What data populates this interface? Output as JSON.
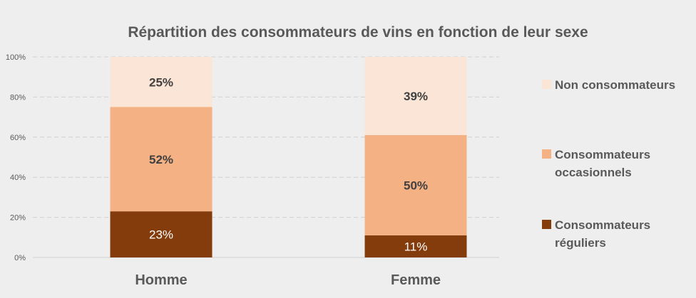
{
  "chart_data": {
    "type": "bar",
    "stacked": true,
    "percent_stacked": true,
    "title": "Répartition des consommateurs de vins en fonction de leur sexe",
    "categories": [
      "Homme",
      "Femme"
    ],
    "series": [
      {
        "name": "Consommateurs réguliers",
        "values": [
          23,
          11
        ],
        "labels": [
          "23%",
          "11%"
        ],
        "color": "#843c0c",
        "label_color": "#ffffff",
        "label_bold": false
      },
      {
        "name": "Consommateurs occasionnels",
        "values": [
          52,
          50
        ],
        "labels": [
          "52%",
          "50%"
        ],
        "color": "#f4b183",
        "label_color": "#404040",
        "label_bold": true
      },
      {
        "name": "Non consommateurs",
        "values": [
          25,
          39
        ],
        "labels": [
          "25%",
          "39%"
        ],
        "color": "#fbe5d6",
        "label_color": "#404040",
        "label_bold": true
      }
    ],
    "ylim": [
      0,
      100
    ],
    "yticks": [
      0,
      20,
      40,
      60,
      80,
      100
    ],
    "ytick_labels": [
      "0%",
      "20%",
      "40%",
      "60%",
      "80%",
      "100%"
    ],
    "grid": true,
    "legend_position": "right",
    "legend": [
      {
        "series": "Non consommateurs",
        "lines": [
          "Non consommateurs"
        ]
      },
      {
        "series": "Consommateurs occasionnels",
        "lines": [
          "Consommateurs",
          "occasionnels"
        ]
      },
      {
        "series": "Consommateurs réguliers",
        "lines": [
          "Consommateurs",
          "réguliers"
        ]
      }
    ]
  }
}
